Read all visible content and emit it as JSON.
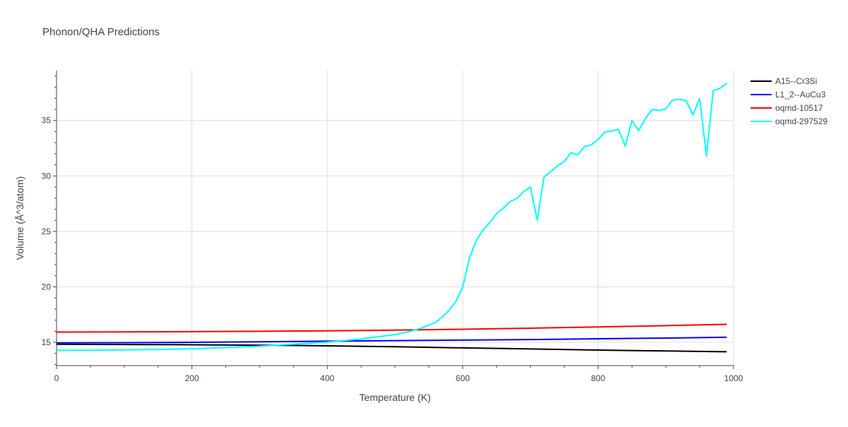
{
  "chart_data": {
    "type": "line",
    "title": "Phonon/QHA Predictions",
    "xlabel": "Temperature (K)",
    "ylabel": "Volume (Å^3/atom)",
    "xlim": [
      0,
      1000
    ],
    "ylim": [
      12.9,
      39.5
    ],
    "xticks": [
      0,
      200,
      400,
      600,
      800,
      1000
    ],
    "yticks": [
      15,
      20,
      25,
      30,
      35
    ],
    "grid": true,
    "legend_position": "top-right",
    "series": [
      {
        "name": "A15--Cr3Si",
        "color": "#000000",
        "x": [
          0,
          100,
          200,
          300,
          340,
          400,
          500,
          600,
          700,
          800,
          900,
          990
        ],
        "y": [
          14.82,
          14.8,
          14.78,
          14.74,
          14.72,
          14.68,
          14.6,
          14.5,
          14.4,
          14.3,
          14.22,
          14.15
        ]
      },
      {
        "name": "L1_2--AuCu3",
        "color": "#0000ff",
        "x": [
          0,
          100,
          200,
          300,
          400,
          500,
          600,
          700,
          800,
          900,
          990
        ],
        "y": [
          14.95,
          14.97,
          15.0,
          15.05,
          15.1,
          15.15,
          15.2,
          15.25,
          15.32,
          15.38,
          15.45
        ]
      },
      {
        "name": "oqmd-10517",
        "color": "#ff0000",
        "x": [
          0,
          100,
          200,
          300,
          400,
          500,
          600,
          700,
          800,
          900,
          990
        ],
        "y": [
          15.92,
          15.94,
          15.96,
          15.99,
          16.04,
          16.1,
          16.18,
          16.27,
          16.38,
          16.5,
          16.62
        ]
      },
      {
        "name": "oqmd-297529",
        "color": "#00ffff",
        "x": [
          0,
          50,
          100,
          150,
          200,
          250,
          300,
          350,
          400,
          450,
          500,
          520,
          540,
          560,
          570,
          580,
          590,
          600,
          610,
          620,
          630,
          640,
          650,
          660,
          670,
          680,
          690,
          700,
          710,
          720,
          730,
          740,
          750,
          760,
          770,
          780,
          790,
          800,
          810,
          820,
          830,
          840,
          850,
          860,
          870,
          880,
          890,
          900,
          910,
          920,
          930,
          940,
          950,
          960,
          970,
          980,
          990
        ],
        "y": [
          14.28,
          14.29,
          14.31,
          14.36,
          14.42,
          14.52,
          14.65,
          14.82,
          15.02,
          15.3,
          15.7,
          15.95,
          16.3,
          16.8,
          17.3,
          17.9,
          18.7,
          20.0,
          22.6,
          24.2,
          25.1,
          25.8,
          26.6,
          27.1,
          27.7,
          27.95,
          28.6,
          29.0,
          26.0,
          29.9,
          30.4,
          30.9,
          31.3,
          32.1,
          31.9,
          32.65,
          32.8,
          33.3,
          33.95,
          34.05,
          34.2,
          32.7,
          35.0,
          34.1,
          35.2,
          36.0,
          35.9,
          36.05,
          36.85,
          36.9,
          36.8,
          35.5,
          37.0,
          31.8,
          37.7,
          37.9,
          38.35
        ]
      }
    ]
  }
}
